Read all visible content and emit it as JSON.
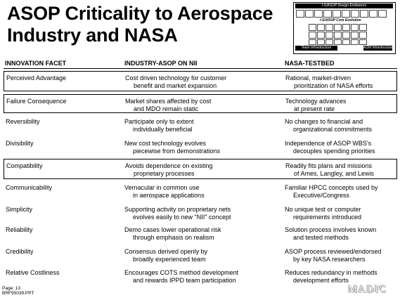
{
  "title": {
    "line1": "ASOP Criticality to Aerospace",
    "line2": "Industry and NASA"
  },
  "thumbnail": {
    "top_label": "I-S/ASOP Design Endeavors",
    "mid_label": "I-S/ASOP Core Evolution",
    "left_label": "Team Infrastructure",
    "right_label": "ASM Infrastructure"
  },
  "headers": {
    "col1": "INNOVATION FACET",
    "col2": "INDUSTRY-ASOP ON NII",
    "col3": "NASA-TESTBED"
  },
  "rows": [
    {
      "facet": "Perceived Advantage",
      "industry": [
        "Cost driven technology for customer",
        "benefit and market expansion"
      ],
      "nasa": [
        "Rational, market-driven",
        "prioritization of NASA efforts"
      ],
      "boxed": true
    },
    {
      "facet": "Failure Consequence",
      "industry": [
        "Market shares affected by cost",
        "and MDO remain static"
      ],
      "nasa": [
        "Technology advances",
        "at present rate"
      ],
      "boxed": true
    },
    {
      "facet": "Reversibility",
      "industry": [
        "Participate only to extent",
        "individually beneficial"
      ],
      "nasa": [
        "No changes to financial and",
        "organizational commitments"
      ],
      "boxed": false
    },
    {
      "facet": "Divisibility",
      "industry": [
        "New cost technology evolves",
        "piecewise from demonstrations"
      ],
      "nasa": [
        "Independence of ASOP WBS's",
        "decouples spending priorities"
      ],
      "boxed": false
    },
    {
      "facet": "Compatibility",
      "industry": [
        "Avoids dependence on existing",
        "proprietary processes"
      ],
      "nasa": [
        "Readily fits plans and missions",
        "of Ames, Langley, and Lewis"
      ],
      "boxed": true
    },
    {
      "facet": "Communicability",
      "industry": [
        "Vernacular in common use",
        "in aerospace applications"
      ],
      "nasa": [
        "Familiar HPCC concepts used by",
        "Executive/Congress"
      ],
      "boxed": false
    },
    {
      "facet": "Simplicity",
      "industry": [
        "Supporting activity on proprietary nets",
        "evolves easily to new \"NII\" concept"
      ],
      "nasa": [
        "No unique test or computer",
        "requirements introduced"
      ],
      "boxed": false
    },
    {
      "facet": "Reliability",
      "industry": [
        "Demo cases lower operational risk",
        "through emphasis on realism"
      ],
      "nasa": [
        "Solution process involves known",
        "and tested methods"
      ],
      "boxed": false
    },
    {
      "facet": "Credibility",
      "industry": [
        "Consensus derived openly by",
        "broadly experienced team"
      ],
      "nasa": [
        "ASOP process reviewed/endorsed",
        "by key NASA researchers"
      ],
      "boxed": false
    },
    {
      "facet": "Relative Costliness",
      "industry": [
        "Encourages COTS method development",
        "and rewards IPPD team participation"
      ],
      "nasa": [
        "Reduces redundancy in methods",
        "development efforts"
      ],
      "boxed": false
    }
  ],
  "footer": {
    "page": "Page: 13",
    "file": "BRF95039.PPT"
  },
  "logo": "MADIC"
}
